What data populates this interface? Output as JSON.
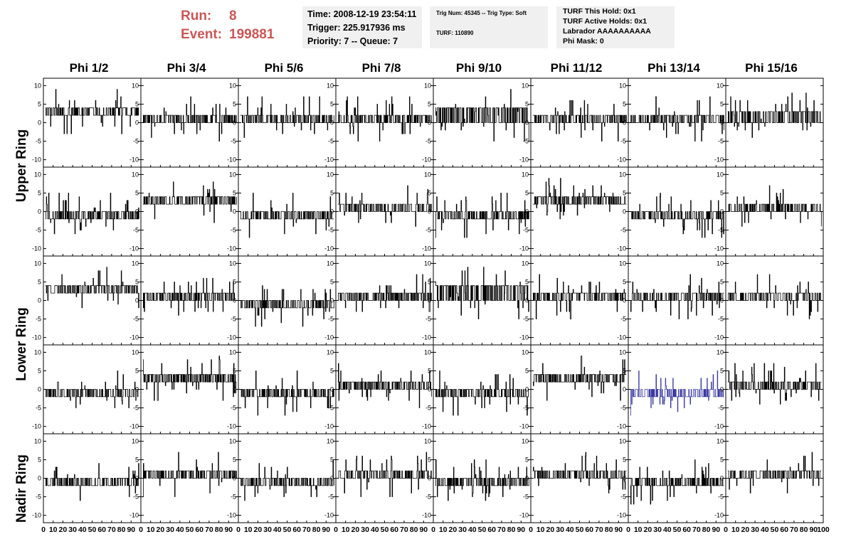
{
  "header": {
    "run_label": "Run:",
    "run_value": "8",
    "event_label": "Event:",
    "event_value": "199881"
  },
  "info_box_1": {
    "time": "Time: 2008-12-19 23:54:11",
    "trigger": "Trigger: 225.917936 ms",
    "priority": "Priority: 7 -- Queue: 7"
  },
  "info_box_2": {
    "trig": "Trig Num: 45345 -- Trig Type: Soft",
    "turf": "TURF: 110890"
  },
  "info_box_3": {
    "hold": "TURF This Hold: 0x1",
    "active": "TURF Active Holds: 0x1",
    "labrador": "Labrador AAAAAAAAAA",
    "phimask": "Phi Mask: 0"
  },
  "columns": [
    "Phi 1/2",
    "Phi 3/4",
    "Phi 5/6",
    "Phi 7/8",
    "Phi 9/10",
    "Phi 11/12",
    "Phi 13/14",
    "Phi 15/16"
  ],
  "rings": [
    "Upper Ring",
    "Lower Ring",
    "Nadir Ring"
  ],
  "colors": {
    "run_text": "#cc5555",
    "trace": "#000000",
    "highlight_trace": "#3a3aa0",
    "info_bg": "#f0f0f0"
  },
  "chart_data": {
    "type": "line",
    "title": "",
    "xlabel": "",
    "ylabel": "",
    "grid_rows": 5,
    "grid_cols": 8,
    "xlim": [
      0,
      100
    ],
    "ylim": [
      -12,
      12
    ],
    "y_ticks": [
      "10",
      "5",
      "0",
      "-5",
      "-10"
    ],
    "x_ticks": [
      "0",
      "10",
      "20",
      "30",
      "40",
      "50",
      "60",
      "70",
      "80",
      "90",
      "100"
    ],
    "highlighted_panel": {
      "row": 3,
      "col": 6
    },
    "panel_levels": [
      [
        [
          2,
          4
        ],
        [
          0,
          2
        ],
        [
          0,
          2
        ],
        [
          0,
          2
        ],
        [
          0,
          4
        ],
        [
          0,
          2
        ],
        [
          0,
          2
        ],
        [
          0,
          3
        ]
      ],
      [
        [
          -2,
          0
        ],
        [
          2,
          4
        ],
        [
          -2,
          0
        ],
        [
          0,
          2
        ],
        [
          -2,
          0
        ],
        [
          2,
          4
        ],
        [
          -2,
          0
        ],
        [
          0,
          2
        ]
      ],
      [
        [
          2,
          4
        ],
        [
          0,
          2
        ],
        [
          -2,
          0
        ],
        [
          0,
          2
        ],
        [
          0,
          4
        ],
        [
          0,
          2
        ],
        [
          0,
          2
        ],
        [
          0,
          2
        ]
      ],
      [
        [
          -2,
          0
        ],
        [
          2,
          4
        ],
        [
          -2,
          0
        ],
        [
          0,
          2
        ],
        [
          -2,
          0
        ],
        [
          2,
          4
        ],
        [
          -2,
          0
        ],
        [
          0,
          2
        ]
      ],
      [
        [
          -2,
          0
        ],
        [
          0,
          2
        ],
        [
          -2,
          0
        ],
        [
          0,
          2
        ],
        [
          -2,
          0
        ],
        [
          0,
          2
        ],
        [
          -2,
          0
        ],
        [
          0,
          2
        ]
      ]
    ]
  }
}
